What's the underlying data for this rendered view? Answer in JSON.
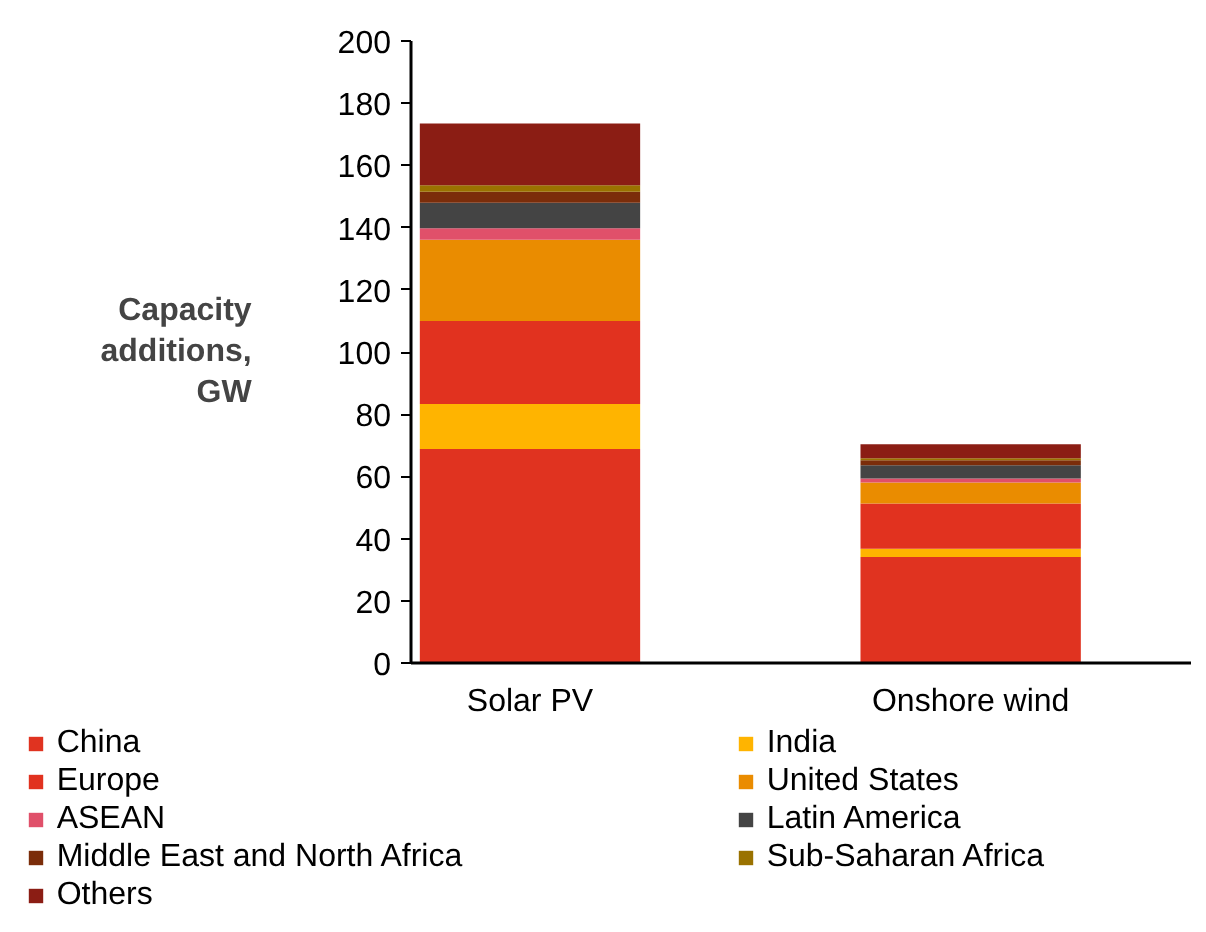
{
  "chart_data": {
    "type": "bar",
    "stacked": true,
    "ylabel": "Capacity additions, GW",
    "categories": [
      "Solar PV",
      "Onshore wind"
    ],
    "ylim": [
      0,
      200
    ],
    "yticks": [
      0,
      20,
      40,
      60,
      80,
      100,
      120,
      140,
      160,
      180,
      200
    ],
    "grid": false,
    "legend": "bottom",
    "series": [
      {
        "name": "China",
        "color": "#e03320",
        "values": [
          68.8,
          34.1
        ]
      },
      {
        "name": "India",
        "color": "#ffb400",
        "values": [
          14.5,
          2.6
        ]
      },
      {
        "name": "Europe",
        "color": "#e1321f",
        "values": [
          26.7,
          14.6
        ]
      },
      {
        "name": "United States",
        "color": "#ea8c00",
        "values": [
          26.1,
          6.7
        ]
      },
      {
        "name": "ASEAN",
        "color": "#e0506a",
        "values": [
          3.7,
          1.3
        ]
      },
      {
        "name": "Latin America",
        "color": "#444444",
        "values": [
          8.2,
          4.3
        ]
      },
      {
        "name": "Middle East and North Africa",
        "color": "#7b2d0a",
        "values": [
          3.5,
          1.6
        ]
      },
      {
        "name": "Sub-Saharan Africa",
        "color": "#9a7200",
        "values": [
          2.1,
          0.6
        ]
      },
      {
        "name": "Others",
        "color": "#8b1d14",
        "values": [
          19.9,
          4.5
        ]
      }
    ]
  }
}
